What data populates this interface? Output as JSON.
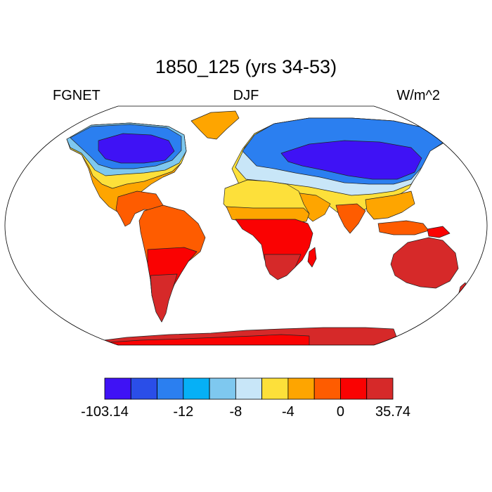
{
  "title": "1850_125 (yrs 34-53)",
  "left_label": "FGNET",
  "center_label": "DJF",
  "right_label": "W/m^2",
  "colorbar": {
    "colors": [
      "#3f12f5",
      "#2a4ee8",
      "#2b7ff0",
      "#06b0f6",
      "#7ec8ef",
      "#c8e6f8",
      "#fde03a",
      "#fea500",
      "#fe5c00",
      "#fa0202",
      "#d62929"
    ],
    "tick_labels": [
      "-103.14",
      "-12",
      "-8",
      "-4",
      "0",
      "35.74"
    ],
    "tick_boundaries": [
      0,
      3,
      5,
      7,
      9,
      11
    ]
  }
}
